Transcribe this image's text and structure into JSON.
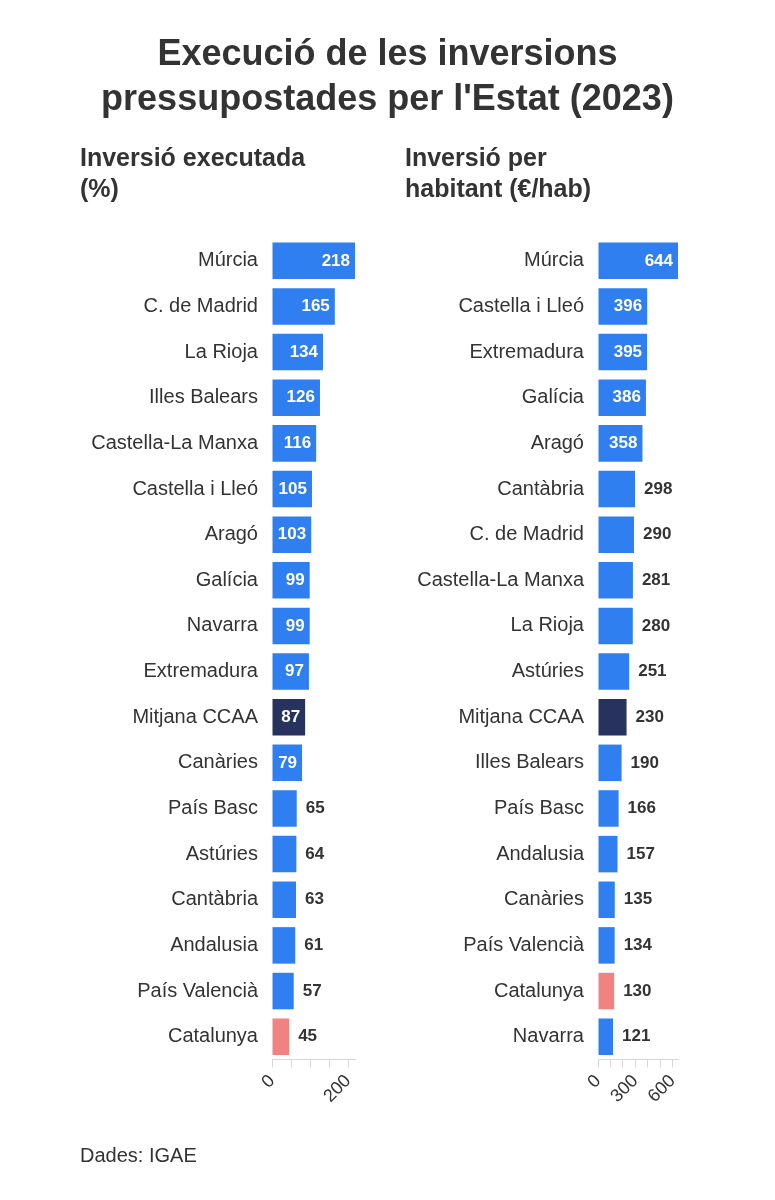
{
  "chart_data": [
    {
      "type": "bar",
      "orientation": "horizontal",
      "title": "Execució de les inversions pressupostades per l'Estat (2023)",
      "subtitle": "Inversió executada (%)",
      "annotations": [
        "Dades: IGAE"
      ],
      "categories": [
        "Múrcia",
        "C. de Madrid",
        "La Rioja",
        "Illes Balears",
        "Castella-La Manxa",
        "Castella i Lleó",
        "Aragó",
        "Galícia",
        "Navarra",
        "Extremadura",
        "Mitjana CCAA",
        "Canàries",
        "País Basc",
        "Astúries",
        "Cantàbria",
        "Andalusia",
        "País Valencià",
        "Catalunya"
      ],
      "values": [
        218,
        165,
        134,
        126,
        116,
        105,
        103,
        99,
        99,
        97,
        87,
        79,
        65,
        64,
        63,
        61,
        57,
        45
      ],
      "colors": [
        "#2f7ff0",
        "#2f7ff0",
        "#2f7ff0",
        "#2f7ff0",
        "#2f7ff0",
        "#2f7ff0",
        "#2f7ff0",
        "#2f7ff0",
        "#2f7ff0",
        "#2f7ff0",
        "#27335e",
        "#2f7ff0",
        "#2f7ff0",
        "#2f7ff0",
        "#2f7ff0",
        "#2f7ff0",
        "#2f7ff0",
        "#f08282"
      ],
      "xlim": [
        0,
        218
      ],
      "xticks": [
        0,
        {
          "value": 50,
          "label": null
        },
        {
          "value": 100,
          "label": null
        },
        {
          "value": 150,
          "label": null
        },
        200
      ],
      "data_labels": true,
      "grid": false,
      "legend": false
    },
    {
      "type": "bar",
      "orientation": "horizontal",
      "subtitle": "Inversió per habitant (€/hab)",
      "categories": [
        "Múrcia",
        "Castella i Lleó",
        "Extremadura",
        "Galícia",
        "Aragó",
        "Cantàbria",
        "C. de Madrid",
        "Castella-La Manxa",
        "La Rioja",
        "Astúries",
        "Mitjana CCAA",
        "Illes Balears",
        "País Basc",
        "Andalusia",
        "Canàries",
        "País Valencià",
        "Catalunya",
        "Navarra"
      ],
      "values": [
        644,
        396,
        395,
        386,
        358,
        298,
        290,
        281,
        280,
        251,
        230,
        190,
        166,
        157,
        135,
        134,
        130,
        121
      ],
      "colors": [
        "#2f7ff0",
        "#2f7ff0",
        "#2f7ff0",
        "#2f7ff0",
        "#2f7ff0",
        "#2f7ff0",
        "#2f7ff0",
        "#2f7ff0",
        "#2f7ff0",
        "#2f7ff0",
        "#27335e",
        "#2f7ff0",
        "#2f7ff0",
        "#2f7ff0",
        "#2f7ff0",
        "#2f7ff0",
        "#f08282",
        "#2f7ff0"
      ],
      "xlim": [
        0,
        644
      ],
      "xticks": [
        0,
        {
          "value": 100,
          "label": null
        },
        {
          "value": 200,
          "label": null
        },
        300,
        {
          "value": 400,
          "label": null
        },
        {
          "value": 500,
          "label": null
        },
        600
      ],
      "data_labels": true,
      "grid": false,
      "legend": false
    }
  ]
}
